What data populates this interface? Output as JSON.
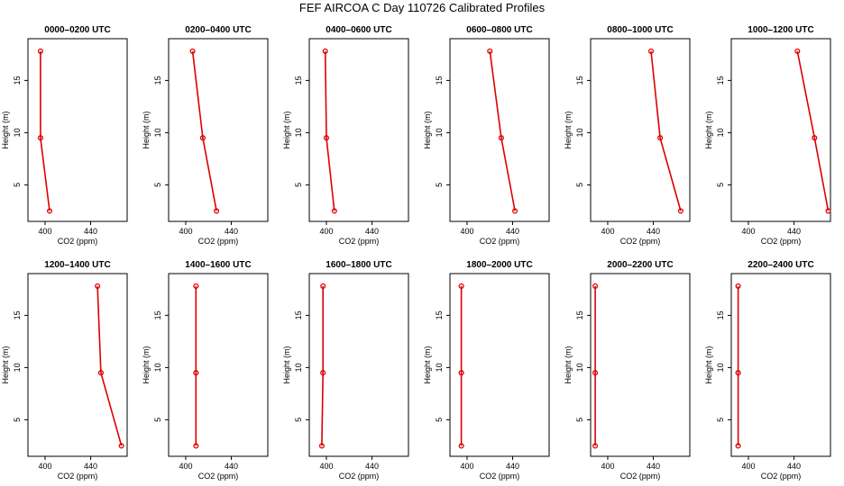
{
  "title": "FEF AIRCOA C  Day 110726  Calibrated Profiles",
  "colors": {
    "line": "#dd0000",
    "axis": "#000000"
  },
  "chart_data": [
    {
      "type": "line",
      "title": "0000–0200 UTC",
      "xlabel": "CO2 (ppm)",
      "ylabel": "Height (m)",
      "xlim": [
        385,
        472
      ],
      "ylim": [
        1.5,
        19
      ],
      "xticks": [
        400,
        440
      ],
      "yticks": [
        5,
        10,
        15
      ],
      "series": [
        {
          "x": [
            396,
            396,
            404
          ],
          "y": [
            17.8,
            9.5,
            2.5
          ]
        }
      ]
    },
    {
      "type": "line",
      "title": "0200–0400 UTC",
      "xlabel": "CO2 (ppm)",
      "ylabel": "Height (m)",
      "xlim": [
        385,
        472
      ],
      "ylim": [
        1.5,
        19
      ],
      "xticks": [
        400,
        440
      ],
      "yticks": [
        5,
        10,
        15
      ],
      "series": [
        {
          "x": [
            406,
            415,
            427
          ],
          "y": [
            17.8,
            9.5,
            2.5
          ]
        }
      ]
    },
    {
      "type": "line",
      "title": "0400–0600 UTC",
      "xlabel": "CO2 (ppm)",
      "ylabel": "Height (m)",
      "xlim": [
        385,
        472
      ],
      "ylim": [
        1.5,
        19
      ],
      "xticks": [
        400,
        440
      ],
      "yticks": [
        5,
        10,
        15
      ],
      "series": [
        {
          "x": [
            399,
            400,
            407
          ],
          "y": [
            17.8,
            9.5,
            2.5
          ]
        }
      ]
    },
    {
      "type": "line",
      "title": "0600–0800 UTC",
      "xlabel": "CO2 (ppm)",
      "ylabel": "Height (m)",
      "xlim": [
        385,
        472
      ],
      "ylim": [
        1.5,
        19
      ],
      "xticks": [
        400,
        440
      ],
      "yticks": [
        5,
        10,
        15
      ],
      "series": [
        {
          "x": [
            420,
            430,
            442
          ],
          "y": [
            17.8,
            9.5,
            2.5
          ]
        }
      ]
    },
    {
      "type": "line",
      "title": "0800–1000 UTC",
      "xlabel": "CO2 (ppm)",
      "ylabel": "Height (m)",
      "xlim": [
        385,
        472
      ],
      "ylim": [
        1.5,
        19
      ],
      "xticks": [
        400,
        440
      ],
      "yticks": [
        5,
        10,
        15
      ],
      "series": [
        {
          "x": [
            438,
            446,
            464
          ],
          "y": [
            17.8,
            9.5,
            2.5
          ]
        }
      ]
    },
    {
      "type": "line",
      "title": "1000–1200 UTC",
      "xlabel": "CO2 (ppm)",
      "ylabel": "Height (m)",
      "xlim": [
        385,
        472
      ],
      "ylim": [
        1.5,
        19
      ],
      "xticks": [
        400,
        440
      ],
      "yticks": [
        5,
        10,
        15
      ],
      "series": [
        {
          "x": [
            443,
            458,
            470
          ],
          "y": [
            17.8,
            9.5,
            2.5
          ]
        }
      ]
    },
    {
      "type": "line",
      "title": "1200–1400 UTC",
      "xlabel": "CO2 (ppm)",
      "ylabel": "Height (m)",
      "xlim": [
        385,
        472
      ],
      "ylim": [
        1.5,
        19
      ],
      "xticks": [
        400,
        440
      ],
      "yticks": [
        5,
        10,
        15
      ],
      "series": [
        {
          "x": [
            446,
            449,
            467
          ],
          "y": [
            17.8,
            9.5,
            2.5
          ]
        }
      ]
    },
    {
      "type": "line",
      "title": "1400–1600 UTC",
      "xlabel": "CO2 (ppm)",
      "ylabel": "Height (m)",
      "xlim": [
        385,
        472
      ],
      "ylim": [
        1.5,
        19
      ],
      "xticks": [
        400,
        440
      ],
      "yticks": [
        5,
        10,
        15
      ],
      "series": [
        {
          "x": [
            409,
            409,
            409
          ],
          "y": [
            17.8,
            9.5,
            2.5
          ]
        }
      ]
    },
    {
      "type": "line",
      "title": "1600–1800 UTC",
      "xlabel": "CO2 (ppm)",
      "ylabel": "Height (m)",
      "xlim": [
        385,
        472
      ],
      "ylim": [
        1.5,
        19
      ],
      "xticks": [
        400,
        440
      ],
      "yticks": [
        5,
        10,
        15
      ],
      "series": [
        {
          "x": [
            397,
            397,
            396
          ],
          "y": [
            17.8,
            9.5,
            2.5
          ]
        }
      ]
    },
    {
      "type": "line",
      "title": "1800–2000 UTC",
      "xlabel": "CO2 (ppm)",
      "ylabel": "Height (m)",
      "xlim": [
        385,
        472
      ],
      "ylim": [
        1.5,
        19
      ],
      "xticks": [
        400,
        440
      ],
      "yticks": [
        5,
        10,
        15
      ],
      "series": [
        {
          "x": [
            395,
            395,
            395
          ],
          "y": [
            17.8,
            9.5,
            2.5
          ]
        }
      ]
    },
    {
      "type": "line",
      "title": "2000–2200 UTC",
      "xlabel": "CO2 (ppm)",
      "ylabel": "Height (m)",
      "xlim": [
        385,
        472
      ],
      "ylim": [
        1.5,
        19
      ],
      "xticks": [
        400,
        440
      ],
      "yticks": [
        5,
        10,
        15
      ],
      "series": [
        {
          "x": [
            389,
            389,
            389
          ],
          "y": [
            17.8,
            9.5,
            2.5
          ]
        }
      ]
    },
    {
      "type": "line",
      "title": "2200–2400 UTC",
      "xlabel": "CO2 (ppm)",
      "ylabel": "Height (m)",
      "xlim": [
        385,
        472
      ],
      "ylim": [
        1.5,
        19
      ],
      "xticks": [
        400,
        440
      ],
      "yticks": [
        5,
        10,
        15
      ],
      "series": [
        {
          "x": [
            391,
            391,
            391
          ],
          "y": [
            17.8,
            9.5,
            2.5
          ]
        }
      ]
    }
  ]
}
